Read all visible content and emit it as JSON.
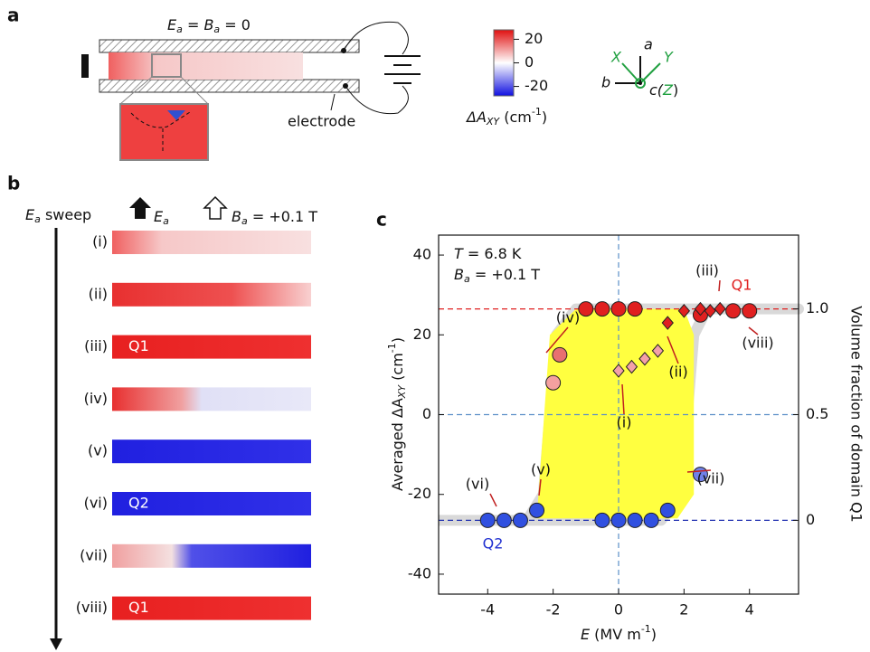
{
  "panel_a": {
    "label": "a",
    "condition": [
      "E",
      "a",
      " = ",
      "B",
      "a",
      " = 0"
    ],
    "electrode_label": "electrode",
    "colorbar": {
      "clim": [
        -28,
        28
      ],
      "ticks": [
        20,
        0,
        -20
      ],
      "label": [
        "ΔA",
        "XY",
        " (cm",
        "-1",
        ")"
      ]
    },
    "axes": {
      "a": "a",
      "b": "b",
      "c": "c(",
      "Z": "Z",
      "close": ")",
      "X": "X",
      "Y": "Y"
    }
  },
  "panel_b": {
    "label": "b",
    "sweep": [
      "E",
      "a",
      " sweep"
    ],
    "field_e": [
      "E",
      "a"
    ],
    "field_b": [
      "B",
      "a",
      " = +0.1 T"
    ],
    "rows": [
      {
        "label": "(i)"
      },
      {
        "label": "(ii)"
      },
      {
        "label": "(iii)",
        "domain": "Q1"
      },
      {
        "label": "(iv)"
      },
      {
        "label": "(v)"
      },
      {
        "label": "(vi)",
        "domain": "Q2"
      },
      {
        "label": "(vii)"
      },
      {
        "label": "(viii)",
        "domain": "Q1"
      }
    ]
  },
  "chart_data": {
    "type": "scatter",
    "label": "c",
    "annotation_t": [
      "T",
      " = 6.8 K"
    ],
    "annotation_b": [
      "B",
      "a",
      " = +0.1 T"
    ],
    "x_label": [
      "E",
      " (MV m",
      "-1",
      ")"
    ],
    "y_label": [
      "Averaged ΔA",
      "XY",
      " (cm",
      "-1",
      ")"
    ],
    "y2_label": "Volume fraction of domain Q1",
    "xlim": [
      -5.5,
      5.5
    ],
    "xticks": [
      -4,
      -2,
      0,
      2,
      4
    ],
    "ylim": [
      -45,
      45
    ],
    "yticks": [
      -40,
      -20,
      0,
      20,
      40
    ],
    "y2lim": [
      -0.349,
      1.349
    ],
    "y2ticks": [
      {
        "value": 1,
        "label": "1.0"
      },
      0.5,
      0
    ],
    "hlines": [
      {
        "y": 26.5,
        "color": "#e02020"
      },
      {
        "y": -26.5,
        "color": "#2030b0"
      },
      {
        "y": 0,
        "color": "#5b8fc8"
      }
    ],
    "vlines": [
      {
        "x": 0,
        "color": "#5b8fc8"
      }
    ],
    "band": {
      "color": "#d9d9d9",
      "x": [
        -5.5,
        -2.8,
        -2.3,
        -1.9,
        -1.3,
        5.5,
        2.7,
        2.3,
        1.9,
        1.3,
        -5.5
      ],
      "values": [
        -26.5,
        -26.5,
        -20,
        20,
        26.5,
        26.5,
        26.5,
        20,
        -20,
        -26.5,
        -26.5
      ]
    },
    "area": {
      "color": "#ffff40",
      "x": [
        -2.5,
        -2.1,
        -1.3,
        2.0,
        2.3,
        2.3,
        1.8,
        -2.5
      ],
      "values": [
        -26,
        20,
        26.5,
        26.5,
        20,
        -20,
        -26,
        -26
      ]
    },
    "series": [
      {
        "marker": "circle",
        "color": "#e02020",
        "x": [
          -1,
          -0.5,
          0,
          0.5,
          2.5,
          3.5,
          4
        ],
        "values": [
          26.5,
          26.5,
          26.5,
          26.5,
          25,
          26,
          26
        ]
      },
      {
        "marker": "circle",
        "color": "#3050e0",
        "x": [
          -4,
          -3.5,
          -3,
          -2.5,
          -0.5,
          0,
          0.5,
          1,
          1.5
        ],
        "values": [
          -26.5,
          -26.5,
          -26.5,
          -24,
          -26.5,
          -26.5,
          -26.5,
          -26.5,
          -24
        ]
      },
      {
        "marker": "circle",
        "color": "#7080e8",
        "x": [
          2.5
        ],
        "values": [
          -15
        ]
      },
      {
        "marker": "circle",
        "color": "#f4a0a0",
        "x": [
          -2
        ],
        "values": [
          8
        ]
      },
      {
        "marker": "circle",
        "color": "#e87070",
        "x": [
          -1.8
        ],
        "values": [
          15
        ]
      },
      {
        "marker": "diamond",
        "color": "#e02020",
        "x": [
          1.5,
          2,
          2.5,
          2.8,
          3.1
        ],
        "values": [
          23,
          26,
          26.5,
          26,
          26.5
        ]
      },
      {
        "marker": "diamond",
        "color": "#f4a0a8",
        "x": [
          0,
          0.4,
          0.8,
          1.2
        ],
        "values": [
          11,
          12,
          14,
          16
        ]
      }
    ],
    "annotations": [
      "(iv)",
      "(ii)",
      "(i)",
      "(iii)",
      "Q1",
      "(viii)",
      "(v)",
      "(vi)",
      "(vii)",
      "Q2"
    ]
  }
}
